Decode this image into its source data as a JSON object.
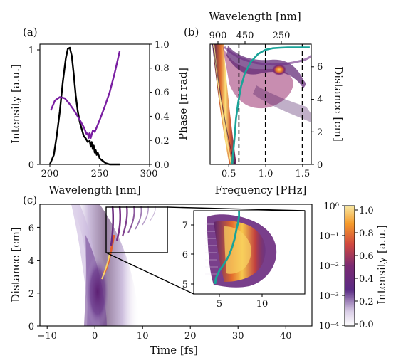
{
  "chart_data": [
    {
      "panel": "(a)",
      "type": "line",
      "xlabel": "Wavelength [nm]",
      "ylabel": "Intensity [a.u.]",
      "y2label": "Phase [π rad]",
      "xlim": [
        190,
        300
      ],
      "ylim": [
        0,
        1.02
      ],
      "y2lim": [
        0,
        1.0
      ],
      "xticks": [
        "200",
        "250",
        "300"
      ],
      "yticks": [
        "0",
        "1"
      ],
      "y2ticks": [
        "0.0",
        "0.2",
        "0.4",
        "0.6",
        "0.8",
        "1.0"
      ],
      "series": [
        {
          "color": "#000000",
          "axis": "left",
          "x": [
            200,
            204,
            207,
            210,
            213,
            216,
            218,
            220,
            222,
            224,
            226,
            228,
            230,
            232,
            234,
            236,
            238,
            240,
            241,
            242,
            243,
            244,
            245,
            246,
            247,
            248,
            250,
            253,
            256,
            260,
            265,
            270
          ],
          "y": [
            0.0,
            0.08,
            0.25,
            0.45,
            0.7,
            0.9,
            0.98,
            0.99,
            0.92,
            0.76,
            0.58,
            0.45,
            0.36,
            0.3,
            0.24,
            0.22,
            0.19,
            0.2,
            0.15,
            0.19,
            0.13,
            0.16,
            0.1,
            0.12,
            0.08,
            0.1,
            0.05,
            0.03,
            0.01,
            0.0,
            0.0,
            0.0
          ]
        },
        {
          "color": "#7a1fa2",
          "axis": "right",
          "x": [
            201,
            205,
            210,
            215,
            220,
            225,
            230,
            234,
            237,
            238,
            239,
            240,
            241,
            242,
            243,
            244,
            245,
            250,
            255,
            260,
            265,
            270
          ],
          "y": [
            0.45,
            0.53,
            0.56,
            0.55,
            0.5,
            0.44,
            0.37,
            0.31,
            0.25,
            0.26,
            0.22,
            0.26,
            0.22,
            0.25,
            0.28,
            0.28,
            0.27,
            0.37,
            0.48,
            0.6,
            0.76,
            0.94
          ]
        }
      ]
    },
    {
      "panel": "(b)",
      "type": "heatmap",
      "xlabel": "Frequency [PHz]",
      "x2label": "Wavelength [nm]",
      "ylabel": "Distance [cm]",
      "xlim": [
        0.25,
        1.62
      ],
      "ylim": [
        0,
        7.4
      ],
      "xticks": [
        "0.5",
        "1.0",
        "1.5"
      ],
      "x2ticks": [
        "900",
        "450",
        "250"
      ],
      "yticks": [
        "0",
        "2",
        "4",
        "6"
      ],
      "colormap": "inferno (white-purple-orange-yellow)",
      "dashed_lines_x": [
        0.64,
        1.0,
        1.5
      ],
      "teal_curve": {
        "color": "#1aa398",
        "x": [
          0.55,
          0.56,
          0.58,
          0.6,
          0.63,
          0.67,
          0.72,
          0.8,
          0.9,
          1.0,
          1.1,
          1.2,
          1.3,
          1.4,
          1.5,
          1.6
        ],
        "y": [
          0.0,
          0.6,
          1.6,
          2.8,
          3.8,
          4.8,
          5.6,
          6.3,
          6.8,
          7.05,
          7.15,
          7.18,
          7.2,
          7.2,
          7.2,
          7.2
        ]
      }
    },
    {
      "panel": "(c)",
      "type": "heatmap",
      "xlabel": "Time [fs]",
      "ylabel": "Distance [cm]",
      "xlim": [
        -12,
        45
      ],
      "ylim": [
        0,
        7.4
      ],
      "xticks": [
        "−10",
        "0",
        "10",
        "20",
        "30",
        "40"
      ],
      "yticks": [
        "0",
        "2",
        "4",
        "6"
      ],
      "inset": {
        "xticks": [
          "5",
          "10"
        ],
        "yticks": [
          "5",
          "6",
          "7"
        ],
        "teal_curve": {
          "color": "#1aa398",
          "x": [
            4.5,
            4.6,
            5.0,
            5.6,
            6.1,
            6.5,
            6.8,
            7.0,
            7.2,
            7.3,
            7.3,
            7.2
          ],
          "y": [
            5.0,
            5.2,
            5.45,
            5.7,
            5.95,
            6.25,
            6.55,
            6.85,
            7.1,
            7.3,
            7.45,
            7.55
          ]
        }
      },
      "colorbars": {
        "log": {
          "ticks": [
            "10⁰",
            "10⁻¹",
            "10⁻²",
            "10⁻³",
            "10⁻⁴"
          ]
        },
        "linear": {
          "ticks": [
            "1.0",
            "0.8",
            "0.6",
            "0.4",
            "0.2",
            "0.0"
          ],
          "label": "Intensity [a.u.]"
        }
      }
    }
  ],
  "colors": {
    "intensity_line": "#000000",
    "phase_line": "#7a1fa2",
    "teal_curve": "#1aa398"
  }
}
